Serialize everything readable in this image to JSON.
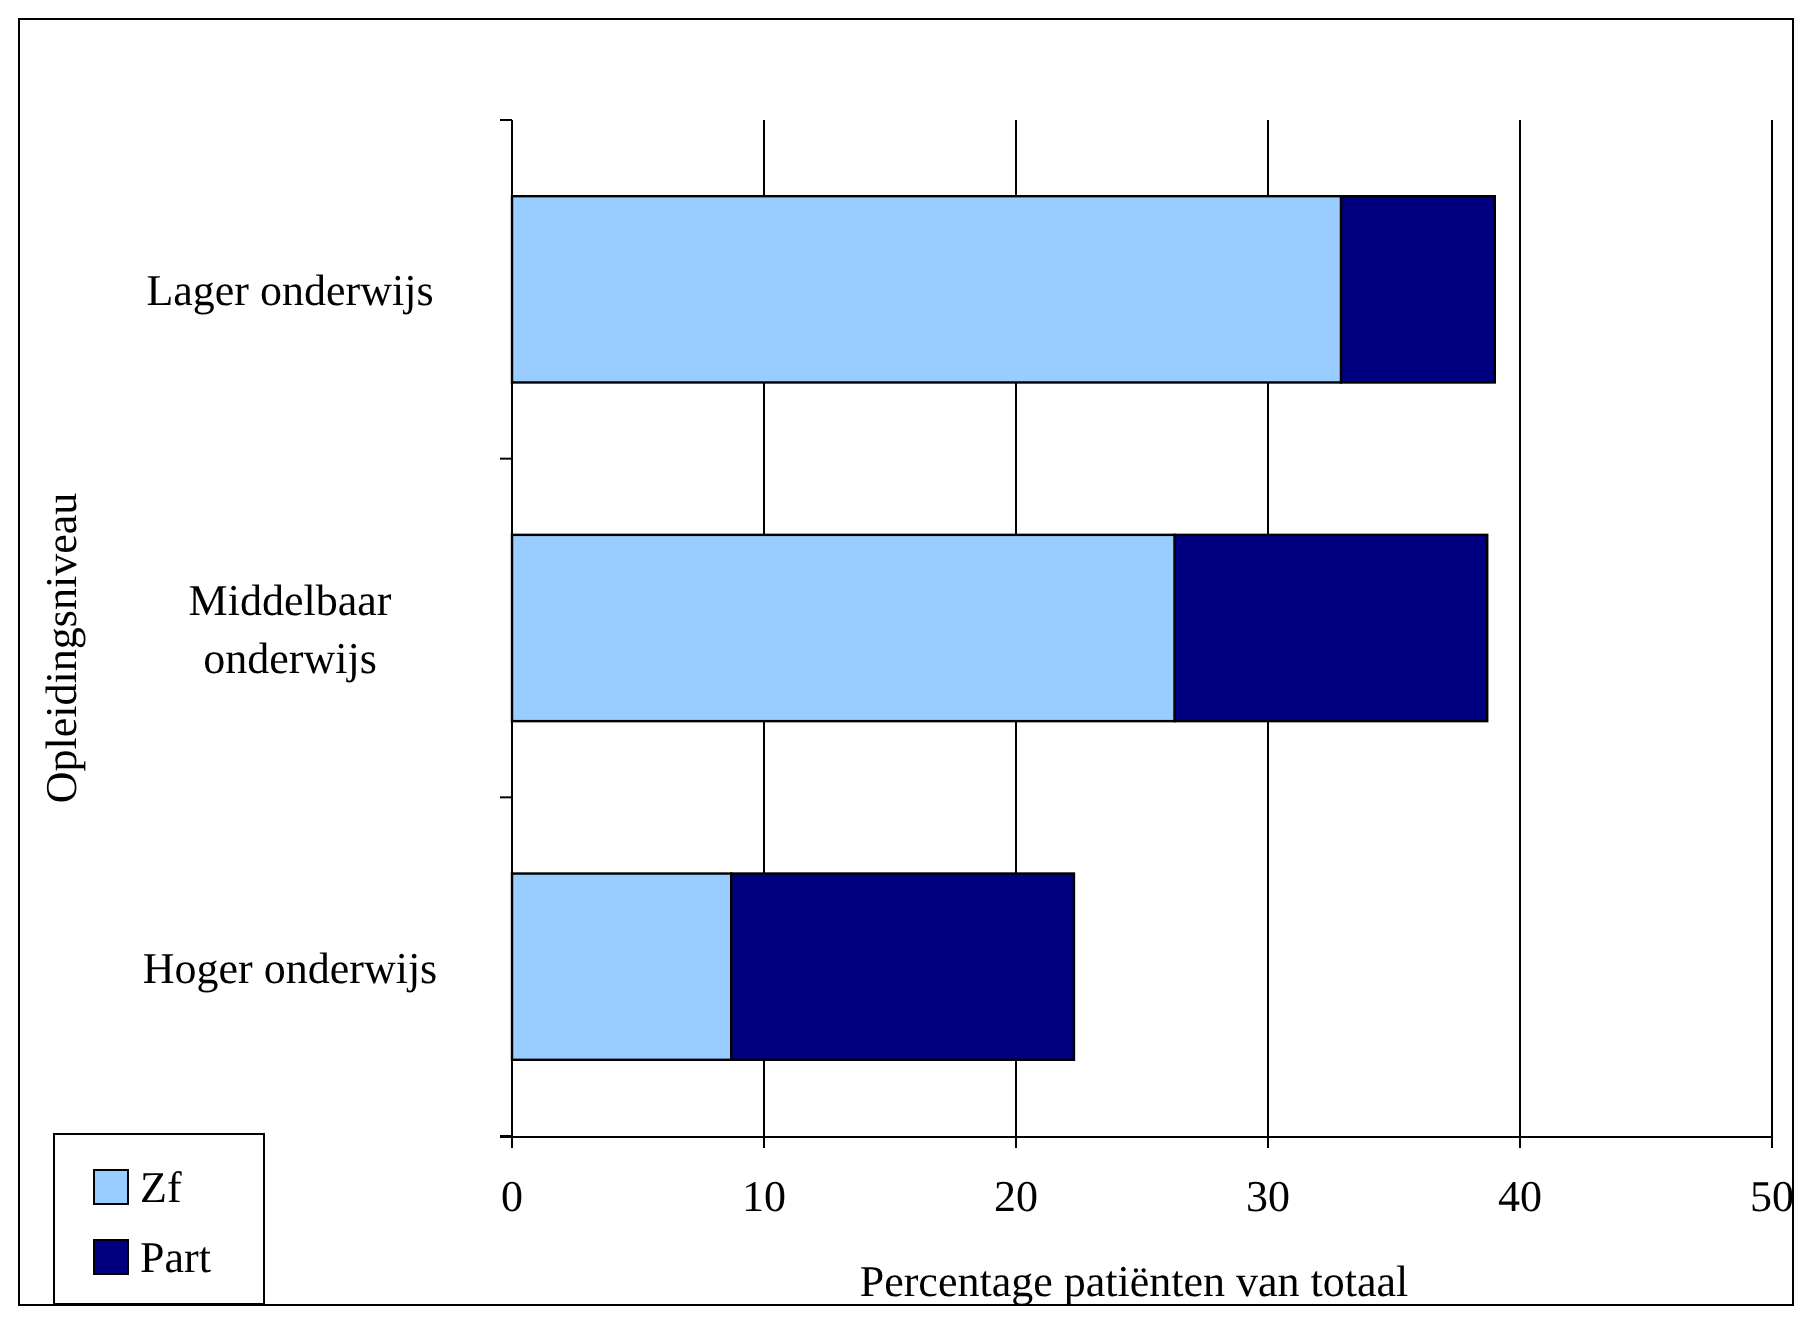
{
  "chart_data": {
    "type": "bar",
    "orientation": "horizontal",
    "stacked": true,
    "categories": [
      "Lager onderwijs",
      "Middelbaar onderwijs",
      "Hoger onderwijs"
    ],
    "series": [
      {
        "name": "Zf",
        "color": "#99ccff",
        "values": [
          32.9,
          26.3,
          8.7
        ]
      },
      {
        "name": "Part",
        "color": "#000080",
        "values": [
          6.1,
          12.4,
          13.6
        ]
      }
    ],
    "xlim": [
      0,
      50
    ],
    "xticks": [
      0,
      10,
      20,
      30,
      40,
      50
    ],
    "xlabel": "Percentage patiënten van totaal",
    "ylabel": "Opleidingsniveau",
    "grid": "x",
    "legend": "bottom left"
  }
}
